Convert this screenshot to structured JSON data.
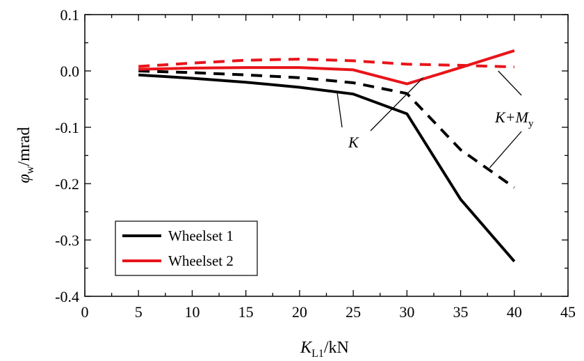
{
  "chart_data": {
    "type": "line",
    "xlabel": {
      "main": "K",
      "sub": "L1",
      "unit": "/kN"
    },
    "ylabel": {
      "main": "φ",
      "sub": "w",
      "unit": "/mrad"
    },
    "xlim": [
      0,
      45
    ],
    "ylim": [
      -0.4,
      0.1
    ],
    "xticks": [
      "0",
      "5",
      "10",
      "15",
      "20",
      "25",
      "30",
      "35",
      "40",
      "45"
    ],
    "yticks": [
      "0.1",
      "0.0",
      "-0.1",
      "-0.2",
      "-0.3",
      "-0.4"
    ],
    "x": [
      5,
      10,
      15,
      20,
      25,
      30,
      35,
      40
    ],
    "series": [
      {
        "name": "Wheelset 1",
        "case": "K",
        "color": "#000000",
        "dash": false,
        "values": [
          -0.007,
          -0.013,
          -0.02,
          -0.029,
          -0.041,
          -0.076,
          -0.228,
          -0.338
        ]
      },
      {
        "name": "Wheelset 1",
        "case": "K+My",
        "color": "#000000",
        "dash": true,
        "values": [
          0.0,
          -0.003,
          -0.007,
          -0.012,
          -0.021,
          -0.04,
          -0.14,
          -0.207
        ]
      },
      {
        "name": "Wheelset 2",
        "case": "K",
        "color": "#e8141a",
        "dash": false,
        "values": [
          0.003,
          0.005,
          0.006,
          0.006,
          0.002,
          -0.023,
          0.006,
          0.036
        ]
      },
      {
        "name": "Wheelset 2",
        "case": "K+My",
        "color": "#e8141a",
        "dash": true,
        "values": [
          0.008,
          0.014,
          0.019,
          0.021,
          0.018,
          0.012,
          0.01,
          0.007
        ]
      }
    ],
    "legend": {
      "position": "bottom-left",
      "items": [
        {
          "label": "Wheelset 1",
          "color": "#000000"
        },
        {
          "label": "Wheelset 2",
          "color": "#e8141a"
        }
      ]
    },
    "annotations": [
      {
        "id": "K",
        "text": "K",
        "targets": [
          [
            23.5,
            -0.038
          ],
          [
            31.5,
            -0.012
          ]
        ]
      },
      {
        "id": "KMy",
        "text": "K+M",
        "sub": "y",
        "targets": [
          [
            38.5,
            0.0
          ],
          [
            37.7,
            -0.172
          ]
        ]
      }
    ]
  }
}
